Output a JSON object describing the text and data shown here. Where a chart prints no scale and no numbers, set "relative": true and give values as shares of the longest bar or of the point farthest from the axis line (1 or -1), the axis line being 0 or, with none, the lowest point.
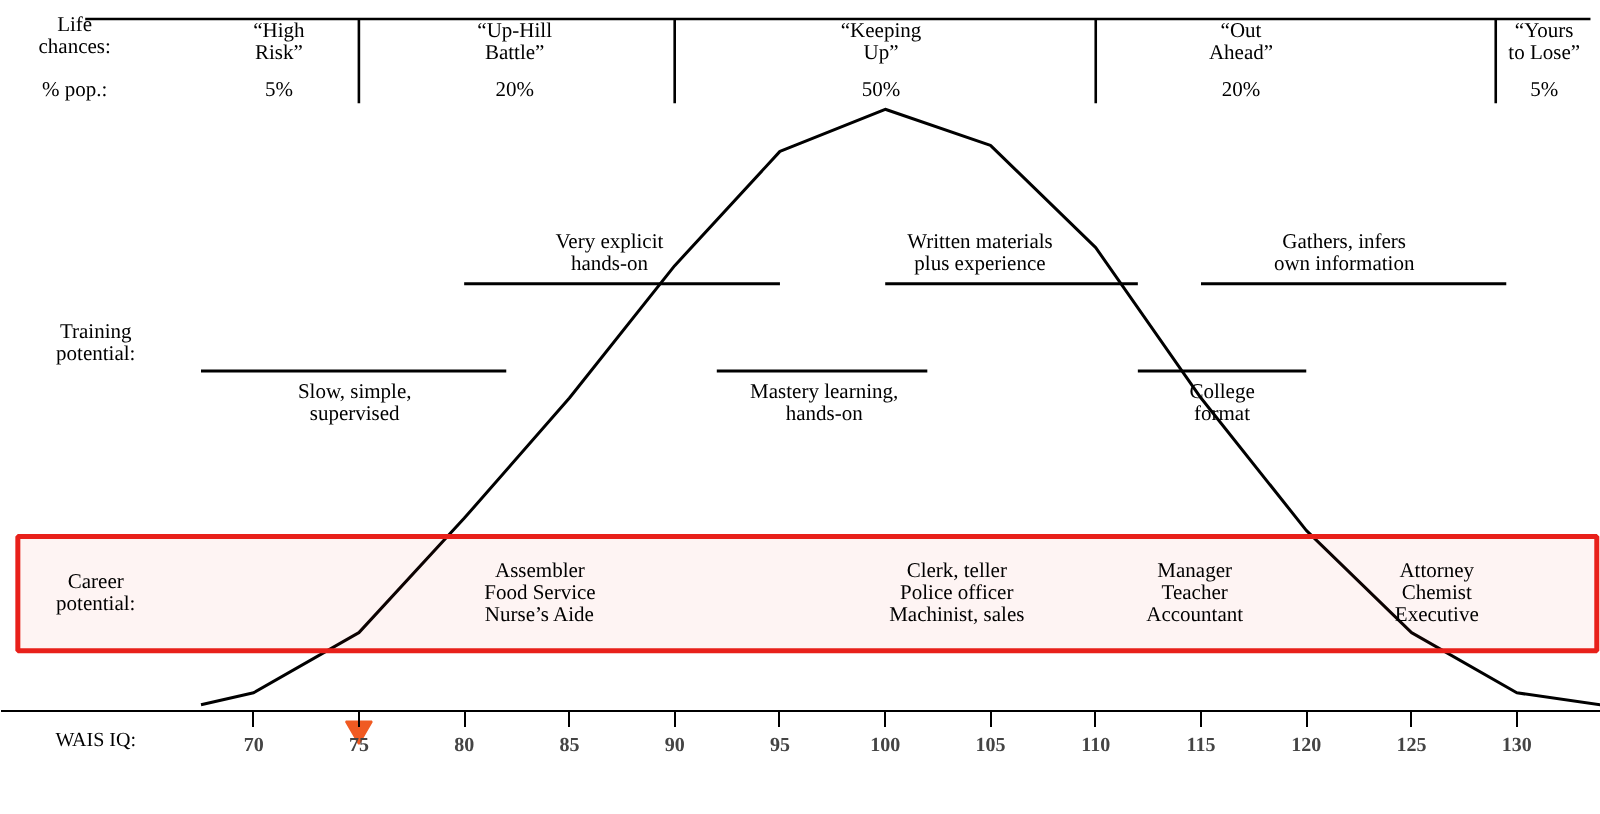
{
  "chart_data": {
    "type": "line",
    "relative": true,
    "xlabel": "WAIS IQ:",
    "xlim": [
      58,
      134
    ],
    "xticks": [
      70,
      75,
      80,
      85,
      90,
      95,
      100,
      105,
      110,
      115,
      120,
      125,
      130
    ],
    "grid": false,
    "series": [
      {
        "color": "#000000",
        "x": [
          67.5,
          70,
          75,
          80,
          85,
          90,
          95,
          100,
          105,
          110,
          115,
          120,
          125,
          130,
          134
        ],
        "values": [
          0.01,
          0.03,
          0.13,
          0.32,
          0.52,
          0.74,
          0.93,
          1.0,
          0.94,
          0.77,
          0.52,
          0.3,
          0.13,
          0.03,
          0.01
        ]
      },
      {
        "color": "#000000",
        "x": [
          80,
          95
        ],
        "values": [
          0.71,
          0.71
        ]
      },
      {
        "color": "#000000",
        "x": [
          100,
          112
        ],
        "values": [
          0.71,
          0.71
        ]
      },
      {
        "color": "#000000",
        "x": [
          115,
          129.5
        ],
        "values": [
          0.71,
          0.71
        ]
      },
      {
        "color": "#000000",
        "x": [
          67.5,
          82
        ],
        "values": [
          0.565,
          0.565
        ]
      },
      {
        "color": "#000000",
        "x": [
          92,
          102
        ],
        "values": [
          0.565,
          0.565
        ]
      },
      {
        "color": "#000000",
        "x": [
          112,
          120
        ],
        "values": [
          0.565,
          0.565
        ]
      },
      {
        "type": "scatter",
        "marker": "triangle",
        "color": "#f05a22",
        "x": [
          75
        ],
        "values": [
          -0.03
        ]
      }
    ],
    "ref_lines": [
      {
        "axis": "y",
        "value": 1.15,
        "color": "#000000"
      }
    ],
    "bands": [
      {
        "axis": "y",
        "from": 0.1,
        "to": 0.29,
        "color": "#e8201a"
      }
    ],
    "annotations": [
      "Life\nchances:",
      "% pop.:",
      "“High\nRisk”",
      "5%",
      "“Up-Hill\nBattle”",
      "20%",
      "“Keeping\nUp”",
      "50%",
      "“Out\nAhead”",
      "20%",
      "“Yours\nto Lose”",
      "5%",
      "Very explicit\nhands-on",
      "Written materials\nplus experience",
      "Gathers, infers\nown information",
      "Training\npotential:",
      "Slow, simple,\nsupervised",
      "Mastery learning,\nhands-on",
      "College\nformat",
      "Career\npotential:",
      "Assembler\nFood Service\nNurse’s Aide",
      "Clerk, teller\nPolice officer\nMachinist, sales",
      "Manager\nTeacher\nAccountant",
      "Attorney\nChemist\nExecutive"
    ]
  }
}
